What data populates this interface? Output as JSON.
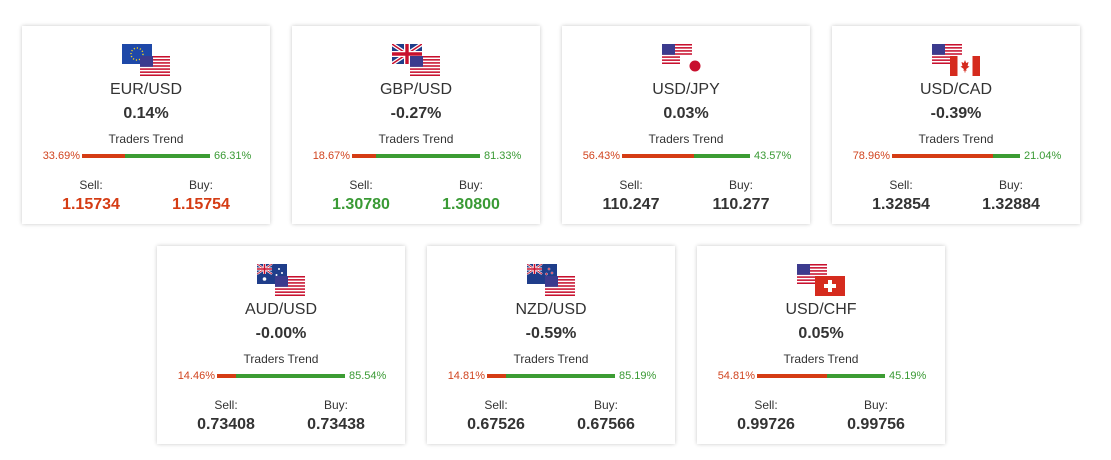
{
  "trends_label": "Traders Trend",
  "sell_label": "Sell:",
  "buy_label": "Buy:",
  "colors": {
    "sell": "#d53c14",
    "buy": "#3c9c33",
    "text": "#333333"
  },
  "cards": [
    {
      "pair": "EUR/USD",
      "change": "0.14%",
      "sell_pct": "33.69%",
      "buy_pct": "66.31%",
      "sell_fraction": 0.3369,
      "sell": "1.15734",
      "buy": "1.15754",
      "price_color": "red",
      "flags": [
        "eu-flag-icon",
        "us-flag-icon"
      ]
    },
    {
      "pair": "GBP/USD",
      "change": "-0.27%",
      "sell_pct": "18.67%",
      "buy_pct": "81.33%",
      "sell_fraction": 0.1867,
      "sell": "1.30780",
      "buy": "1.30800",
      "price_color": "green",
      "flags": [
        "uk-flag-icon",
        "us-flag-icon"
      ]
    },
    {
      "pair": "USD/JPY",
      "change": "0.03%",
      "sell_pct": "56.43%",
      "buy_pct": "43.57%",
      "sell_fraction": 0.5643,
      "sell": "110.247",
      "buy": "110.277",
      "price_color": "neutral",
      "flags": [
        "us-flag-icon",
        "jp-flag-icon"
      ]
    },
    {
      "pair": "USD/CAD",
      "change": "-0.39%",
      "sell_pct": "78.96%",
      "buy_pct": "21.04%",
      "sell_fraction": 0.7896,
      "sell": "1.32854",
      "buy": "1.32884",
      "price_color": "neutral",
      "flags": [
        "us-flag-icon",
        "ca-flag-icon"
      ]
    },
    {
      "pair": "AUD/USD",
      "change": "-0.00%",
      "sell_pct": "14.46%",
      "buy_pct": "85.54%",
      "sell_fraction": 0.1446,
      "sell": "0.73408",
      "buy": "0.73438",
      "price_color": "neutral",
      "flags": [
        "au-flag-icon",
        "us-flag-icon"
      ]
    },
    {
      "pair": "NZD/USD",
      "change": "-0.59%",
      "sell_pct": "14.81%",
      "buy_pct": "85.19%",
      "sell_fraction": 0.1481,
      "sell": "0.67526",
      "buy": "0.67566",
      "price_color": "neutral",
      "flags": [
        "nz-flag-icon",
        "us-flag-icon"
      ]
    },
    {
      "pair": "USD/CHF",
      "change": "0.05%",
      "sell_pct": "54.81%",
      "buy_pct": "45.19%",
      "sell_fraction": 0.5481,
      "sell": "0.99726",
      "buy": "0.99756",
      "price_color": "neutral",
      "flags": [
        "us-flag-icon",
        "ch-flag-icon"
      ]
    }
  ]
}
